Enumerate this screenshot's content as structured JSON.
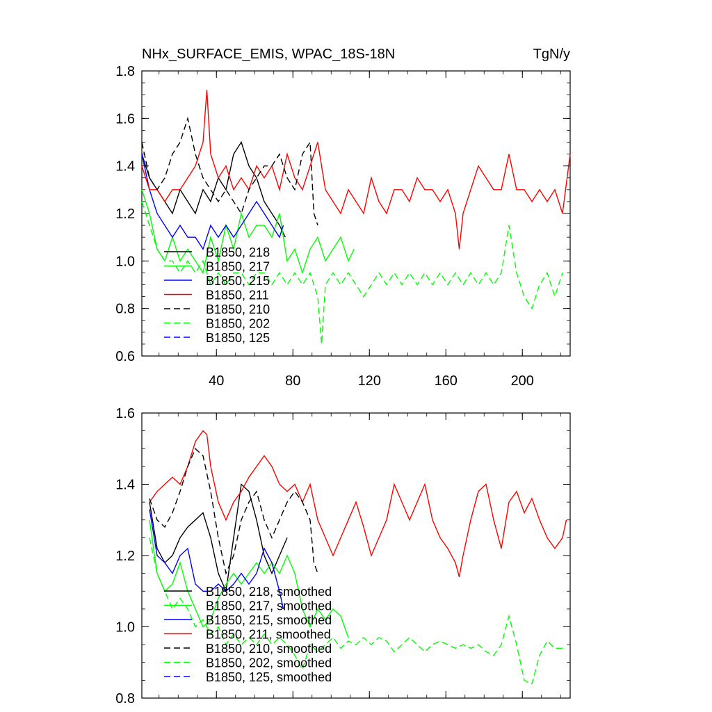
{
  "figure": {
    "title": "NHx_SURFACE_EMIS, WPAC_18S-18N",
    "units": "TgN/y"
  },
  "chart_data": [
    {
      "type": "line",
      "panel": "top",
      "xlim": [
        1,
        225
      ],
      "ylim": [
        0.6,
        1.8
      ],
      "xticks": [
        40,
        80,
        120,
        160,
        200
      ],
      "xtick_labels": [
        "40",
        "80",
        "120",
        "160",
        "200"
      ],
      "yticks": [
        0.6,
        0.8,
        1.0,
        1.2,
        1.4,
        1.6,
        1.8
      ],
      "ytick_labels": [
        "0.6",
        "0.8",
        "1.0",
        "1.2",
        "1.4",
        "1.6",
        "1.8"
      ],
      "legend_position": "bottom-left",
      "series": [
        {
          "name": "B1850, 218",
          "color": "#000000",
          "dash": "solid",
          "x": [
            1,
            5,
            9,
            13,
            17,
            21,
            25,
            29,
            33,
            37,
            41,
            45,
            49,
            53,
            57,
            61,
            65,
            69,
            73,
            76
          ],
          "y": [
            1.45,
            1.35,
            1.3,
            1.25,
            1.2,
            1.3,
            1.25,
            1.2,
            1.3,
            1.25,
            1.35,
            1.3,
            1.45,
            1.5,
            1.4,
            1.35,
            1.25,
            1.2,
            1.15,
            1.1
          ]
        },
        {
          "name": "B1850, 217",
          "color": "#00ff00",
          "dash": "solid",
          "x": [
            1,
            5,
            9,
            13,
            17,
            21,
            25,
            29,
            33,
            37,
            41,
            45,
            49,
            53,
            57,
            61,
            65,
            69,
            73,
            77,
            81,
            85,
            89,
            93,
            97,
            101,
            105,
            109,
            112
          ],
          "y": [
            1.3,
            1.2,
            1.05,
            1.0,
            1.1,
            1.0,
            1.05,
            1.0,
            0.95,
            1.1,
            1.0,
            1.15,
            1.05,
            1.2,
            1.1,
            1.15,
            1.15,
            1.1,
            1.2,
            1.0,
            1.05,
            0.95,
            1.05,
            1.1,
            1.0,
            1.05,
            1.1,
            1.0,
            1.05
          ]
        },
        {
          "name": "B1850, 215",
          "color": "#0000ff",
          "dash": "solid",
          "x": [
            1,
            5,
            9,
            13,
            17,
            21,
            25,
            29,
            33,
            37,
            41,
            45,
            49,
            53,
            57,
            61,
            65,
            69,
            73,
            75
          ],
          "y": [
            1.45,
            1.3,
            1.2,
            1.15,
            1.1,
            1.15,
            1.1,
            1.1,
            1.05,
            1.15,
            1.1,
            1.15,
            1.1,
            1.15,
            1.2,
            1.25,
            1.2,
            1.15,
            1.1,
            1.15
          ]
        },
        {
          "name": "B1850, 211",
          "color": "#ff0000",
          "dash": "solid",
          "x": [
            1,
            5,
            9,
            13,
            17,
            21,
            25,
            29,
            33,
            35,
            37,
            41,
            45,
            49,
            53,
            57,
            61,
            65,
            69,
            73,
            77,
            81,
            85,
            89,
            93,
            97,
            101,
            105,
            109,
            113,
            117,
            121,
            125,
            129,
            133,
            137,
            141,
            145,
            149,
            153,
            157,
            161,
            165,
            167,
            169,
            173,
            177,
            181,
            185,
            189,
            193,
            197,
            201,
            205,
            209,
            213,
            217,
            221,
            225
          ],
          "y": [
            1.4,
            1.3,
            1.3,
            1.25,
            1.3,
            1.3,
            1.35,
            1.4,
            1.5,
            1.72,
            1.45,
            1.35,
            1.4,
            1.3,
            1.35,
            1.3,
            1.4,
            1.35,
            1.4,
            1.3,
            1.45,
            1.35,
            1.3,
            1.4,
            1.5,
            1.3,
            1.25,
            1.2,
            1.3,
            1.25,
            1.2,
            1.35,
            1.25,
            1.2,
            1.3,
            1.3,
            1.25,
            1.35,
            1.3,
            1.3,
            1.25,
            1.3,
            1.2,
            1.05,
            1.2,
            1.3,
            1.4,
            1.35,
            1.3,
            1.3,
            1.45,
            1.3,
            1.3,
            1.25,
            1.3,
            1.25,
            1.3,
            1.2,
            1.45
          ]
        },
        {
          "name": "B1850, 210",
          "color": "#000000",
          "dash": "dashed",
          "x": [
            1,
            5,
            9,
            13,
            17,
            21,
            25,
            29,
            33,
            37,
            41,
            45,
            49,
            53,
            57,
            61,
            65,
            69,
            73,
            77,
            81,
            85,
            89,
            91,
            93
          ],
          "y": [
            1.5,
            1.35,
            1.3,
            1.35,
            1.45,
            1.5,
            1.6,
            1.45,
            1.35,
            1.3,
            1.25,
            1.3,
            1.25,
            1.2,
            1.3,
            1.35,
            1.4,
            1.4,
            1.45,
            1.35,
            1.3,
            1.45,
            1.5,
            1.2,
            1.15
          ]
        },
        {
          "name": "B1850, 202",
          "color": "#00ff00",
          "dash": "dashed",
          "x": [
            1,
            5,
            9,
            13,
            17,
            21,
            25,
            29,
            33,
            37,
            41,
            45,
            49,
            53,
            57,
            61,
            65,
            69,
            73,
            77,
            81,
            85,
            89,
            93,
            95,
            97,
            101,
            105,
            109,
            113,
            117,
            121,
            125,
            129,
            133,
            137,
            141,
            145,
            149,
            153,
            157,
            161,
            165,
            169,
            173,
            177,
            181,
            185,
            189,
            193,
            197,
            201,
            205,
            209,
            213,
            217,
            221
          ],
          "y": [
            1.25,
            1.15,
            1.05,
            1.0,
            1.0,
            0.95,
            1.0,
            0.95,
            1.0,
            0.9,
            0.95,
            0.9,
            0.95,
            0.95,
            0.9,
            0.95,
            0.95,
            0.9,
            0.95,
            0.9,
            0.95,
            0.9,
            0.95,
            0.85,
            0.65,
            0.9,
            0.95,
            0.9,
            0.95,
            0.9,
            0.85,
            0.9,
            0.95,
            0.9,
            0.95,
            0.9,
            0.95,
            0.9,
            0.95,
            0.9,
            0.95,
            0.9,
            0.95,
            0.9,
            0.95,
            0.9,
            0.95,
            0.9,
            0.95,
            1.15,
            0.95,
            0.85,
            0.8,
            0.9,
            0.95,
            0.85,
            0.95
          ]
        },
        {
          "name": "B1850, 125",
          "color": "#0000ff",
          "dash": "dashed",
          "x": [],
          "y": []
        }
      ]
    },
    {
      "type": "line",
      "panel": "bottom",
      "xlim": [
        1,
        225
      ],
      "ylim": [
        0.8,
        1.6
      ],
      "xticks": [
        40,
        80,
        120,
        160,
        200
      ],
      "xtick_labels": [],
      "yticks": [
        0.8,
        1.0,
        1.2,
        1.4,
        1.6
      ],
      "ytick_labels": [
        "0.8",
        "1.0",
        "1.2",
        "1.4",
        "1.6"
      ],
      "legend_position": "bottom-left",
      "series": [
        {
          "name": "B1850, 218, smoothed",
          "color": "#000000",
          "dash": "solid",
          "x": [
            5,
            9,
            13,
            17,
            21,
            25,
            29,
            33,
            37,
            41,
            45,
            49,
            53,
            57,
            61,
            65,
            69,
            73,
            77
          ],
          "y": [
            1.35,
            1.22,
            1.18,
            1.2,
            1.25,
            1.28,
            1.3,
            1.32,
            1.25,
            1.15,
            1.1,
            1.25,
            1.4,
            1.38,
            1.3,
            1.2,
            1.15,
            1.2,
            1.25
          ]
        },
        {
          "name": "B1850, 217, smoothed",
          "color": "#00ff00",
          "dash": "solid",
          "x": [
            5,
            9,
            13,
            17,
            21,
            25,
            29,
            33,
            37,
            41,
            45,
            49,
            53,
            57,
            61,
            65,
            69,
            73,
            77,
            81,
            85,
            89,
            93,
            97,
            101,
            105,
            109
          ],
          "y": [
            1.3,
            1.15,
            1.1,
            1.12,
            1.18,
            1.1,
            1.05,
            1.0,
            1.02,
            1.08,
            1.12,
            1.15,
            1.12,
            1.15,
            1.18,
            1.15,
            1.18,
            1.15,
            1.2,
            1.15,
            1.05,
            1.0,
            1.05,
            1.02,
            1.05,
            1.03,
            0.97
          ]
        },
        {
          "name": "B1850, 215, smoothed",
          "color": "#0000ff",
          "dash": "solid",
          "x": [
            5,
            9,
            13,
            17,
            21,
            25,
            29,
            33,
            37,
            41,
            45,
            49,
            53,
            57,
            61,
            65,
            69,
            73,
            75
          ],
          "y": [
            1.33,
            1.2,
            1.18,
            1.15,
            1.2,
            1.22,
            1.12,
            1.1,
            1.1,
            1.12,
            1.1,
            1.12,
            1.15,
            1.12,
            1.15,
            1.22,
            1.18,
            1.1,
            1.05
          ]
        },
        {
          "name": "B1850, 211, smoothed",
          "color": "#ff0000",
          "dash": "solid",
          "x": [
            5,
            9,
            13,
            17,
            21,
            25,
            29,
            33,
            35,
            37,
            41,
            45,
            49,
            53,
            57,
            61,
            65,
            69,
            73,
            77,
            81,
            85,
            89,
            93,
            97,
            101,
            105,
            109,
            113,
            117,
            121,
            125,
            129,
            133,
            137,
            141,
            145,
            149,
            153,
            157,
            161,
            165,
            167,
            169,
            173,
            177,
            181,
            185,
            189,
            193,
            197,
            201,
            205,
            209,
            213,
            217,
            221,
            223
          ],
          "y": [
            1.35,
            1.38,
            1.4,
            1.42,
            1.4,
            1.45,
            1.52,
            1.55,
            1.54,
            1.45,
            1.35,
            1.3,
            1.35,
            1.38,
            1.42,
            1.45,
            1.48,
            1.45,
            1.4,
            1.38,
            1.4,
            1.35,
            1.4,
            1.3,
            1.25,
            1.2,
            1.25,
            1.3,
            1.35,
            1.28,
            1.2,
            1.25,
            1.3,
            1.4,
            1.35,
            1.3,
            1.35,
            1.4,
            1.3,
            1.25,
            1.22,
            1.18,
            1.14,
            1.2,
            1.3,
            1.38,
            1.4,
            1.3,
            1.22,
            1.35,
            1.38,
            1.32,
            1.36,
            1.3,
            1.25,
            1.22,
            1.25,
            1.3
          ]
        },
        {
          "name": "B1850, 210, smoothed",
          "color": "#000000",
          "dash": "dashed",
          "x": [
            5,
            9,
            13,
            17,
            21,
            25,
            29,
            33,
            37,
            41,
            45,
            49,
            53,
            57,
            61,
            65,
            69,
            73,
            77,
            81,
            85,
            89,
            91,
            93
          ],
          "y": [
            1.36,
            1.3,
            1.28,
            1.32,
            1.38,
            1.45,
            1.5,
            1.48,
            1.38,
            1.25,
            1.15,
            1.2,
            1.3,
            1.35,
            1.38,
            1.3,
            1.25,
            1.3,
            1.35,
            1.38,
            1.35,
            1.3,
            1.18,
            1.15
          ]
        },
        {
          "name": "B1850, 202, smoothed",
          "color": "#00ff00",
          "dash": "dashed",
          "x": [
            5,
            9,
            13,
            17,
            21,
            25,
            29,
            33,
            37,
            41,
            45,
            49,
            53,
            57,
            61,
            65,
            69,
            73,
            77,
            81,
            85,
            89,
            93,
            97,
            101,
            105,
            109,
            113,
            117,
            121,
            125,
            129,
            133,
            137,
            141,
            145,
            149,
            153,
            157,
            161,
            165,
            169,
            173,
            177,
            181,
            185,
            189,
            193,
            197,
            201,
            205,
            209,
            213,
            217,
            221
          ],
          "y": [
            1.25,
            1.15,
            1.1,
            1.05,
            1.08,
            1.05,
            1.0,
            1.02,
            0.98,
            1.0,
            0.95,
            0.98,
            0.95,
            0.97,
            0.95,
            0.98,
            0.95,
            0.97,
            0.95,
            0.92,
            0.88,
            0.95,
            0.93,
            0.95,
            0.97,
            0.94,
            0.96,
            0.95,
            0.97,
            0.95,
            0.97,
            0.96,
            0.93,
            0.95,
            0.97,
            0.95,
            0.93,
            0.95,
            0.96,
            0.95,
            0.94,
            0.95,
            0.94,
            0.95,
            0.93,
            0.92,
            0.95,
            1.03,
            0.95,
            0.85,
            0.84,
            0.92,
            0.96,
            0.94,
            0.94
          ]
        },
        {
          "name": "B1850, 125, smoothed",
          "color": "#0000ff",
          "dash": "dashed",
          "x": [],
          "y": []
        }
      ]
    }
  ]
}
